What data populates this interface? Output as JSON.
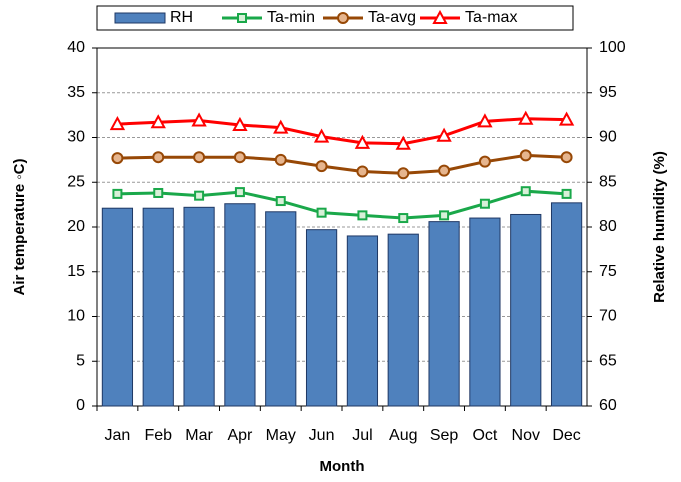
{
  "chart_data": {
    "type": "bar",
    "categories": [
      "Jan",
      "Feb",
      "Mar",
      "Apr",
      "May",
      "Jun",
      "Jul",
      "Aug",
      "Sep",
      "Oct",
      "Nov",
      "Dec"
    ],
    "x_label": "Month",
    "y_label": "Air temperature ◦C)",
    "y2_label": "Relative humidity (%)",
    "ylim": [
      0,
      40
    ],
    "yticks": [
      0,
      5,
      10,
      15,
      20,
      25,
      30,
      35,
      40
    ],
    "y2lim": [
      60,
      100
    ],
    "y2ticks": [
      60,
      65,
      70,
      75,
      80,
      85,
      90,
      95,
      100
    ],
    "grid": true,
    "legend": "top",
    "series": [
      {
        "name": "RH",
        "type": "bar",
        "axis": "y2",
        "color": "#4f81bd",
        "values": [
          82.1,
          82.1,
          82.2,
          82.6,
          81.7,
          79.7,
          79.0,
          79.2,
          80.6,
          81.0,
          81.4,
          82.7
        ]
      },
      {
        "name": "Ta-min",
        "type": "line",
        "marker": "square",
        "color": "#1aa84a",
        "values": [
          23.7,
          23.8,
          23.5,
          23.9,
          22.9,
          21.6,
          21.3,
          21.0,
          21.3,
          22.6,
          24.0,
          23.7
        ]
      },
      {
        "name": "Ta-avg",
        "type": "line",
        "marker": "circle",
        "color": "#974806",
        "values": [
          27.7,
          27.8,
          27.8,
          27.8,
          27.5,
          26.8,
          26.2,
          26.0,
          26.3,
          27.3,
          28.0,
          27.8
        ]
      },
      {
        "name": "Ta-max",
        "type": "line",
        "marker": "triangle",
        "color": "#ff0000",
        "values": [
          31.5,
          31.7,
          31.9,
          31.4,
          31.1,
          30.1,
          29.4,
          29.3,
          30.2,
          31.8,
          32.1,
          32.0
        ]
      }
    ]
  }
}
